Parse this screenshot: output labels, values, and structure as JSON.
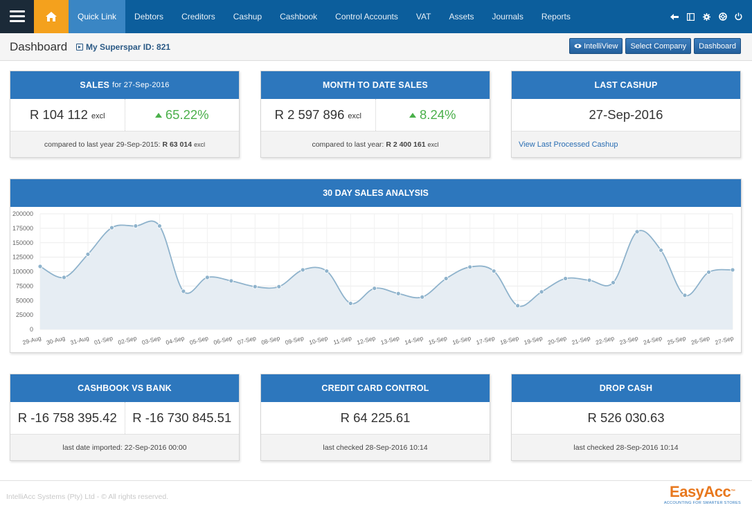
{
  "nav": {
    "items": [
      {
        "label": "Quick Link",
        "active": true
      },
      {
        "label": "Debtors"
      },
      {
        "label": "Creditors"
      },
      {
        "label": "Cashup"
      },
      {
        "label": "Cashbook"
      },
      {
        "label": "Control Accounts"
      },
      {
        "label": "VAT"
      },
      {
        "label": "Assets"
      },
      {
        "label": "Journals"
      },
      {
        "label": "Reports"
      }
    ],
    "right_icons": [
      "signout-arrow-icon",
      "columns-icon",
      "gear-icon",
      "support-icon",
      "power-icon"
    ]
  },
  "header": {
    "title": "Dashboard",
    "store": "My Superspar ID: 821",
    "buttons": {
      "intelliview": "IntelliView",
      "select_company": "Select Company",
      "dashboard": "Dashboard"
    }
  },
  "cards": {
    "sales": {
      "title": "SALES",
      "date": "for 27-Sep-2016",
      "value": "R 104 112",
      "unit": "excl",
      "pct": "65.22%",
      "footer_text": "compared to last year 29-Sep-2015:",
      "footer_value": "R 63 014",
      "footer_unit": "excl"
    },
    "mtd": {
      "title": "MONTH TO DATE SALES",
      "value": "R 2 597 896",
      "unit": "excl",
      "pct": "8.24%",
      "footer_text": "compared to last year:",
      "footer_value": "R 2 400 161",
      "footer_unit": "excl"
    },
    "last_cashup": {
      "title": "LAST CASHUP",
      "value": "27-Sep-2016",
      "link": "View Last Processed Cashup"
    },
    "cashbook": {
      "title": "CASHBOOK VS BANK",
      "value1": "R -16 758 395.42",
      "value2": "R -16 730 845.51",
      "footer": "last date imported: 22-Sep-2016 00:00"
    },
    "credit_card": {
      "title": "CREDIT CARD CONTROL",
      "value": "R 64 225.61",
      "footer": "last checked 28-Sep-2016 10:14"
    },
    "drop_cash": {
      "title": "DROP CASH",
      "value": "R 526 030.63",
      "footer": "last checked 28-Sep-2016 10:14"
    }
  },
  "chart_data": {
    "type": "area",
    "title": "30 DAY SALES ANALYSIS",
    "categories": [
      "29-Aug",
      "30-Aug",
      "31-Aug",
      "01-Sep",
      "02-Sep",
      "03-Sep",
      "04-Sep",
      "05-Sep",
      "06-Sep",
      "07-Sep",
      "08-Sep",
      "09-Sep",
      "10-Sep",
      "11-Sep",
      "12-Sep",
      "13-Sep",
      "14-Sep",
      "15-Sep",
      "16-Sep",
      "17-Sep",
      "18-Sep",
      "19-Sep",
      "20-Sep",
      "21-Sep",
      "22-Sep",
      "23-Sep",
      "24-Sep",
      "25-Sep",
      "26-Sep",
      "27-Sep"
    ],
    "values": [
      109000,
      90000,
      130000,
      176000,
      179000,
      179000,
      66000,
      90000,
      84000,
      74000,
      74000,
      103000,
      101000,
      45000,
      71000,
      62000,
      56000,
      88000,
      108000,
      101000,
      41000,
      65000,
      88000,
      85000,
      81000,
      169000,
      137000,
      59000,
      99000,
      103000
    ],
    "ylim": [
      0,
      200000
    ],
    "yticks": [
      0,
      25000,
      50000,
      75000,
      100000,
      125000,
      150000,
      175000,
      200000
    ],
    "grid": true,
    "colors": {
      "line": "#8fb3cc",
      "fill": "#e6edf3",
      "point": "#8fb3cc"
    }
  },
  "footer": {
    "copyright": "IntelliAcc Systems (Pty) Ltd - © All rights reserved.",
    "logo_name": "EasyAcc",
    "logo_tm": "™",
    "logo_tag": "ACCOUNTING FOR SMARTER STORES"
  }
}
